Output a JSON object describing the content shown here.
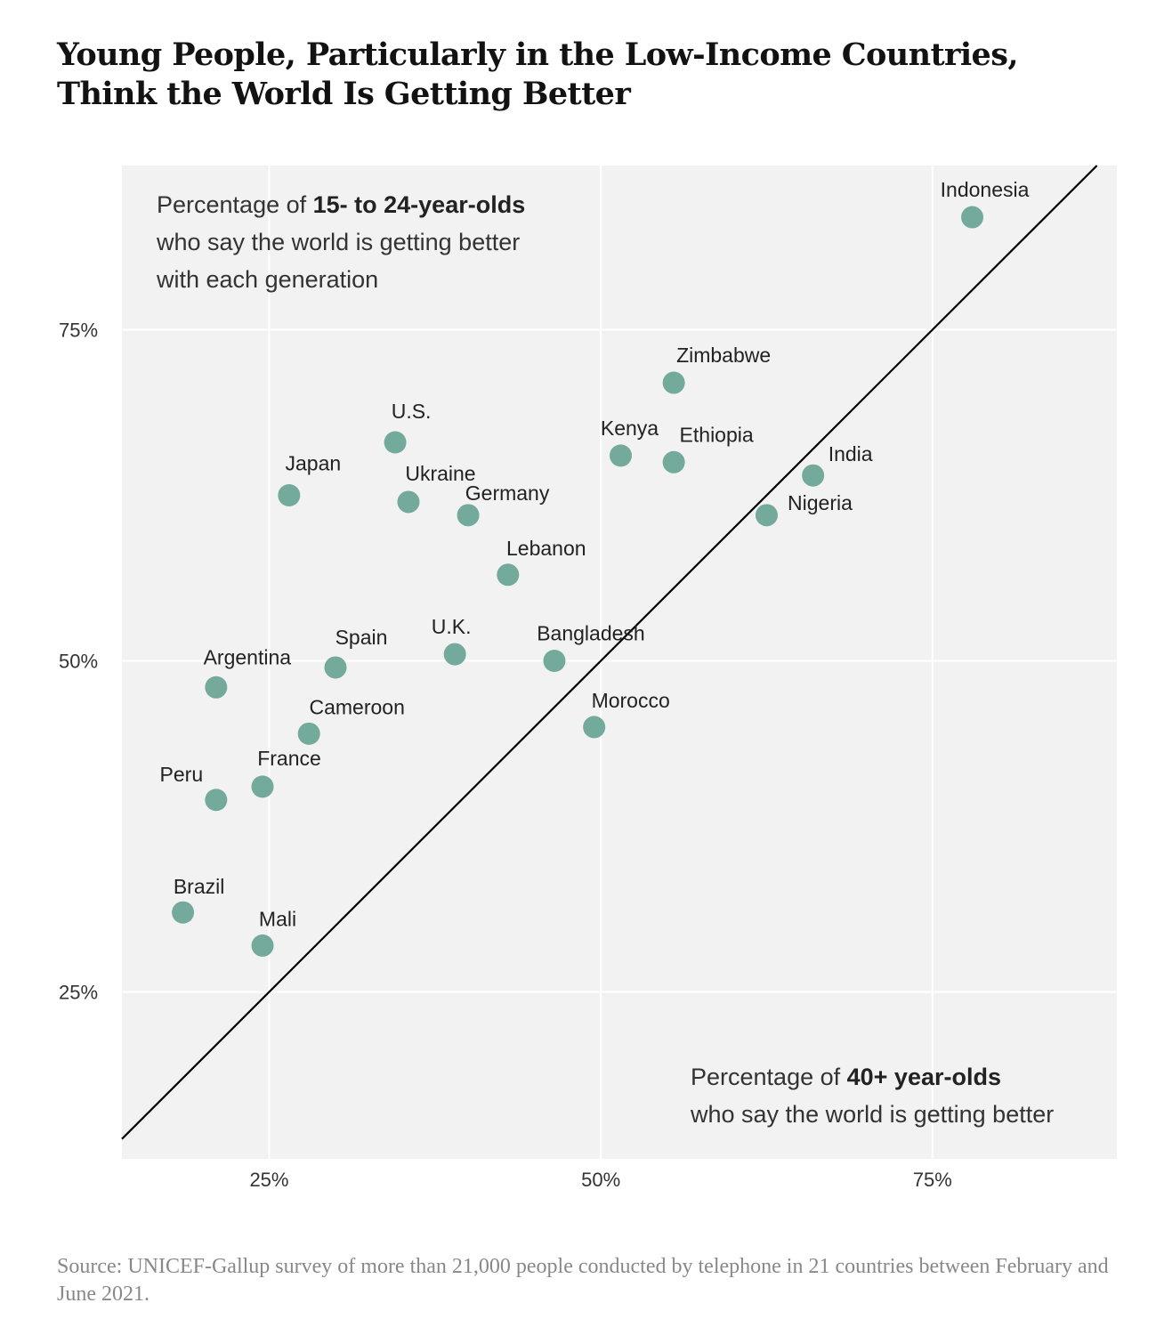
{
  "title": "Young People, Particularly in the Low-Income Countries, Think the World Is Getting Better",
  "source": "Source: UNICEF-Gallup survey of more than 21,000 people conducted by telephone in 21 countries between February and June 2021.",
  "annotations": {
    "y_label": {
      "line1_prefix": "Percentage of ",
      "line1_bold": "15- to 24-year-olds",
      "line2": "who say the world is getting better",
      "line3": "with each generation"
    },
    "x_label": {
      "line1_prefix": "Percentage of ",
      "line1_bold": "40+ year-olds",
      "line2": "who say the world is getting better"
    }
  },
  "colors": {
    "dot": "#73aa9c",
    "plot_background": "#f2f2f2",
    "gridline": "#ffffff",
    "diagonal": "#000000"
  },
  "chart_data": {
    "type": "scatter",
    "xlabel": "Percentage of 40+ year-olds who say the world is getting better",
    "ylabel": "Percentage of 15- to 24-year-olds who say the world is getting better with each generation",
    "xlim": [
      13.9,
      88.9
    ],
    "ylim": [
      12.4,
      87.4
    ],
    "x_ticks": [
      25,
      50,
      75
    ],
    "y_ticks": [
      25,
      50,
      75
    ],
    "tick_format": "{v}%",
    "grid": true,
    "reference_line": "y = x",
    "points": [
      {
        "label": "Indonesia",
        "x": 78,
        "y": 83.5
      },
      {
        "label": "Zimbabwe",
        "x": 55.5,
        "y": 71
      },
      {
        "label": "U.S.",
        "x": 34.5,
        "y": 66.5
      },
      {
        "label": "Kenya",
        "x": 51.5,
        "y": 65.5
      },
      {
        "label": "Ethiopia",
        "x": 55.5,
        "y": 65
      },
      {
        "label": "Japan",
        "x": 26.5,
        "y": 62.5
      },
      {
        "label": "India",
        "x": 66,
        "y": 64
      },
      {
        "label": "Ukraine",
        "x": 35.5,
        "y": 62
      },
      {
        "label": "Germany",
        "x": 40,
        "y": 61
      },
      {
        "label": "Nigeria",
        "x": 62.5,
        "y": 61
      },
      {
        "label": "Lebanon",
        "x": 43,
        "y": 56.5
      },
      {
        "label": "U.K.",
        "x": 39,
        "y": 50.5
      },
      {
        "label": "Bangladesh",
        "x": 46.5,
        "y": 50
      },
      {
        "label": "Spain",
        "x": 30,
        "y": 49.5
      },
      {
        "label": "Argentina",
        "x": 21,
        "y": 48
      },
      {
        "label": "Morocco",
        "x": 49.5,
        "y": 45
      },
      {
        "label": "Cameroon",
        "x": 28,
        "y": 44.5
      },
      {
        "label": "France",
        "x": 24.5,
        "y": 40.5
      },
      {
        "label": "Peru",
        "x": 21,
        "y": 39.5
      },
      {
        "label": "Brazil",
        "x": 18.5,
        "y": 31
      },
      {
        "label": "Mali",
        "x": 24.5,
        "y": 28.5
      }
    ]
  }
}
